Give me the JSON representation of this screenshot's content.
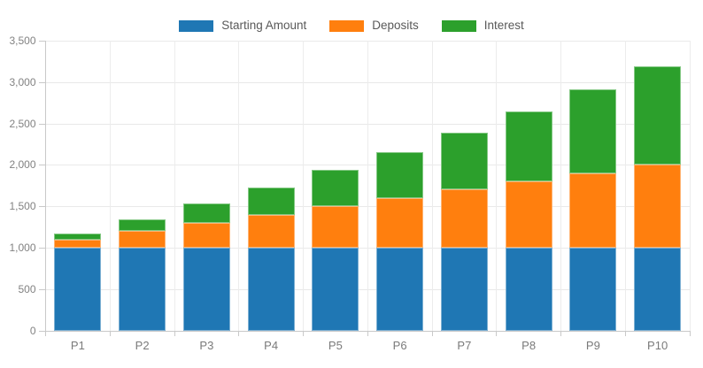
{
  "chart_data": {
    "type": "bar",
    "stacked": true,
    "title": "",
    "xlabel": "",
    "ylabel": "",
    "categories": [
      "P1",
      "P2",
      "P3",
      "P4",
      "P5",
      "P6",
      "P7",
      "P8",
      "P9",
      "P10"
    ],
    "series": [
      {
        "name": "Starting Amount",
        "color": "#1f77b4",
        "values": [
          1000,
          1000,
          1000,
          1000,
          1000,
          1000,
          1000,
          1000,
          1000,
          1000
        ]
      },
      {
        "name": "Deposits",
        "color": "#ff7f0e",
        "values": [
          100,
          200,
          300,
          400,
          500,
          600,
          700,
          800,
          900,
          1000
        ]
      },
      {
        "name": "Interest",
        "color": "#2ca02c",
        "values": [
          66,
          142,
          229,
          326,
          436,
          558,
          693,
          843,
          1008,
          1188
        ]
      }
    ],
    "stack_totals": [
      1166,
      1342,
      1529,
      1726,
      1936,
      2158,
      2393,
      2643,
      2908,
      3188
    ],
    "ylim": [
      0,
      3500
    ],
    "y_ticks": [
      0,
      500,
      1000,
      1500,
      2000,
      2500,
      3000,
      3500
    ],
    "y_tick_labels": [
      "0",
      "500",
      "1,000",
      "1,500",
      "2,000",
      "2,500",
      "3,000",
      "3,500"
    ],
    "legend_position": "top",
    "grid": true
  }
}
